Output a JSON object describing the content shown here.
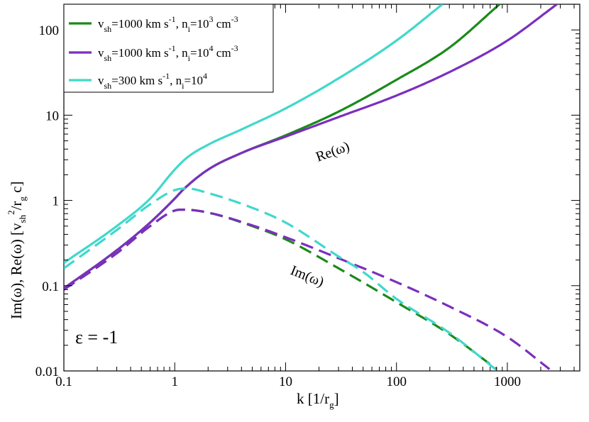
{
  "chart_data": {
    "type": "line",
    "xscale": "log",
    "yscale": "log",
    "xlim": [
      0.1,
      4500
    ],
    "ylim": [
      0.01,
      200
    ],
    "xticks": [
      0.1,
      1,
      10,
      100,
      1000
    ],
    "xtick_labels": [
      "0.1",
      "1",
      "10",
      "100",
      "1000"
    ],
    "yticks": [
      0.01,
      0.1,
      1,
      10,
      100
    ],
    "ytick_labels": [
      "0.01",
      "0.1",
      "1",
      "10",
      "100"
    ],
    "xlabel": {
      "main": "k [1/r",
      "sub": "g",
      "end": "]"
    },
    "ylabel": {
      "part1": "Im(ω), Re(ω) [v",
      "sub1": "sh",
      "sup1": "2",
      "part2": "/r",
      "sub2": "g",
      "part3": " c]"
    },
    "annotations": {
      "re": "Re(ω)",
      "im": "Im(ω)",
      "epsilon": "ε = -1"
    },
    "legend_position": "top-left",
    "legend": [
      {
        "color": "#1a8a1a",
        "v": "v",
        "v_sub": "sh",
        "speed": "=1000 km s",
        "speed_sup": "-1",
        "comma": ", n",
        "n_sub": "i",
        "n_val": "=10",
        "n_exp": "3",
        "unit": " cm",
        "unit_sup": "-3"
      },
      {
        "color": "#7b2fbe",
        "v": "v",
        "v_sub": "sh",
        "speed": "=1000 km s",
        "speed_sup": "-1",
        "comma": ", n",
        "n_sub": "i",
        "n_val": "=10",
        "n_exp": "4",
        "unit": " cm",
        "unit_sup": "-3"
      },
      {
        "color": "#40d8cc",
        "v": "v",
        "v_sub": "sh",
        "speed": "=300 km s",
        "speed_sup": "-1",
        "comma": ", n",
        "n_sub": "i",
        "n_val": "=10",
        "n_exp": "4",
        "unit": "",
        "unit_sup": ""
      }
    ],
    "series": [
      {
        "name": "Re ω, vsh=1000, ni=1e3",
        "color": "#1a8a1a",
        "dash": false,
        "x": [
          0.1,
          0.3,
          0.6,
          1.0,
          1.2,
          2,
          4,
          10,
          30,
          100,
          300,
          850
        ],
        "y": [
          0.093,
          0.26,
          0.55,
          1.05,
          1.35,
          2.3,
          3.6,
          5.8,
          11,
          26,
          62,
          200
        ]
      },
      {
        "name": "Re ω, vsh=1000, ni=1e4",
        "color": "#7b2fbe",
        "dash": false,
        "x": [
          0.1,
          0.3,
          0.6,
          1.0,
          1.2,
          2,
          4,
          10,
          30,
          100,
          300,
          1000,
          2800
        ],
        "y": [
          0.093,
          0.26,
          0.55,
          1.05,
          1.35,
          2.3,
          3.6,
          5.6,
          9.5,
          17,
          32,
          75,
          200
        ]
      },
      {
        "name": "Re ω, vsh=300, ni=1e4",
        "color": "#40d8cc",
        "dash": false,
        "x": [
          0.1,
          0.3,
          0.6,
          1.0,
          1.3,
          2,
          4,
          10,
          30,
          100,
          260
        ],
        "y": [
          0.185,
          0.5,
          1.05,
          2.3,
          3.2,
          4.5,
          6.8,
          12,
          27,
          75,
          200
        ]
      },
      {
        "name": "Im ω, vsh=1000, ni=1e3",
        "color": "#1a8a1a",
        "dash": true,
        "x": [
          0.1,
          0.3,
          0.6,
          1.0,
          1.2,
          2,
          5,
          10,
          30,
          100,
          300,
          800
        ],
        "y": [
          0.09,
          0.24,
          0.5,
          0.76,
          0.78,
          0.72,
          0.5,
          0.35,
          0.16,
          0.064,
          0.027,
          0.0105
        ]
      },
      {
        "name": "Im ω, vsh=1000, ni=1e4",
        "color": "#7b2fbe",
        "dash": true,
        "x": [
          0.1,
          0.3,
          0.6,
          1.0,
          1.2,
          2,
          5,
          10,
          30,
          100,
          300,
          1000,
          2400
        ],
        "y": [
          0.09,
          0.24,
          0.5,
          0.76,
          0.78,
          0.72,
          0.51,
          0.37,
          0.21,
          0.11,
          0.057,
          0.025,
          0.0105
        ]
      },
      {
        "name": "Im ω, vsh=300, ni=1e4",
        "color": "#40d8cc",
        "dash": true,
        "x": [
          0.1,
          0.3,
          0.6,
          1.0,
          1.3,
          2,
          5,
          10,
          30,
          50,
          100,
          300,
          780
        ],
        "y": [
          0.16,
          0.45,
          0.9,
          1.32,
          1.38,
          1.22,
          0.82,
          0.55,
          0.22,
          0.145,
          0.07,
          0.028,
          0.0105
        ]
      }
    ]
  }
}
